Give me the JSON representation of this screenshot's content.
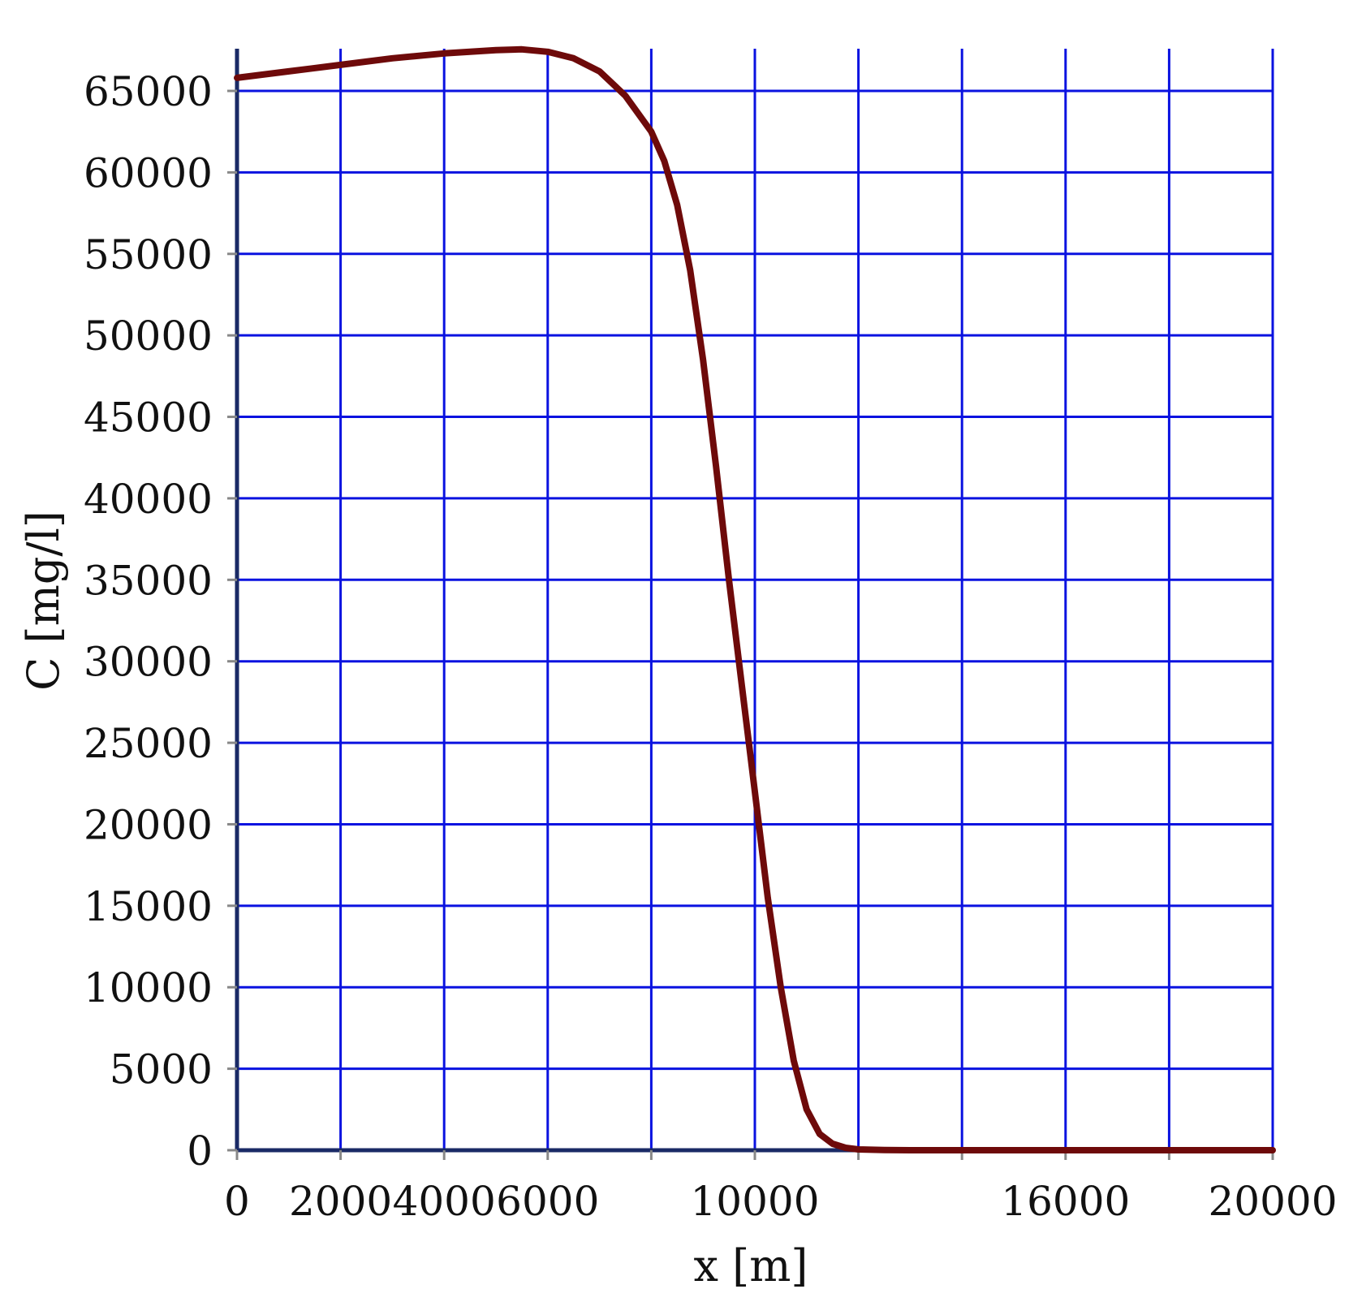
{
  "chart_data": {
    "type": "line",
    "title": "",
    "xlabel": "x [m]",
    "ylabel": "C [mg/l]",
    "xlim": [
      0,
      20000
    ],
    "ylim": [
      0,
      67500
    ],
    "x_gridlines": [
      0,
      2000,
      4000,
      6000,
      8000,
      10000,
      12000,
      14000,
      16000,
      18000,
      20000
    ],
    "y_gridlines": [
      0,
      5000,
      10000,
      15000,
      20000,
      25000,
      30000,
      35000,
      40000,
      45000,
      50000,
      55000,
      60000,
      65000
    ],
    "x_tick_labels": [
      {
        "value": 0,
        "label": "0"
      },
      {
        "value": 2000,
        "label": "2000"
      },
      {
        "value": 4000,
        "label": "4000"
      },
      {
        "value": 6000,
        "label": "6000"
      },
      {
        "value": 10000,
        "label": "10000"
      },
      {
        "value": 16000,
        "label": "16000"
      },
      {
        "value": 20000,
        "label": "20000"
      }
    ],
    "y_tick_labels": [
      {
        "value": 0,
        "label": "0"
      },
      {
        "value": 5000,
        "label": "5000"
      },
      {
        "value": 10000,
        "label": "10000"
      },
      {
        "value": 15000,
        "label": "15000"
      },
      {
        "value": 20000,
        "label": "20000"
      },
      {
        "value": 25000,
        "label": "25000"
      },
      {
        "value": 30000,
        "label": "30000"
      },
      {
        "value": 35000,
        "label": "35000"
      },
      {
        "value": 40000,
        "label": "40000"
      },
      {
        "value": 45000,
        "label": "45000"
      },
      {
        "value": 50000,
        "label": "50000"
      },
      {
        "value": 55000,
        "label": "55000"
      },
      {
        "value": 60000,
        "label": "60000"
      },
      {
        "value": 65000,
        "label": "65000"
      }
    ],
    "grid": true,
    "colors": {
      "grid": "#0a12e0",
      "axis": "#1a2a66",
      "series": "#6e0a0a"
    },
    "series": [
      {
        "x": [
          0,
          1000,
          2000,
          3000,
          4000,
          5000,
          5500,
          6000,
          6500,
          7000,
          7500,
          8000,
          8250,
          8500,
          8750,
          9000,
          9250,
          9500,
          9750,
          10000,
          10250,
          10500,
          10750,
          11000,
          11250,
          11500,
          11750,
          12000,
          12500,
          13000,
          14000,
          16000,
          18000,
          20000
        ],
        "y": [
          65800,
          66200,
          66600,
          67000,
          67300,
          67500,
          67550,
          67400,
          67000,
          66200,
          64700,
          62500,
          60700,
          58000,
          54000,
          48500,
          42000,
          35000,
          28500,
          22000,
          15500,
          10000,
          5500,
          2500,
          1000,
          400,
          150,
          50,
          10,
          0,
          0,
          0,
          0,
          0
        ]
      }
    ]
  }
}
